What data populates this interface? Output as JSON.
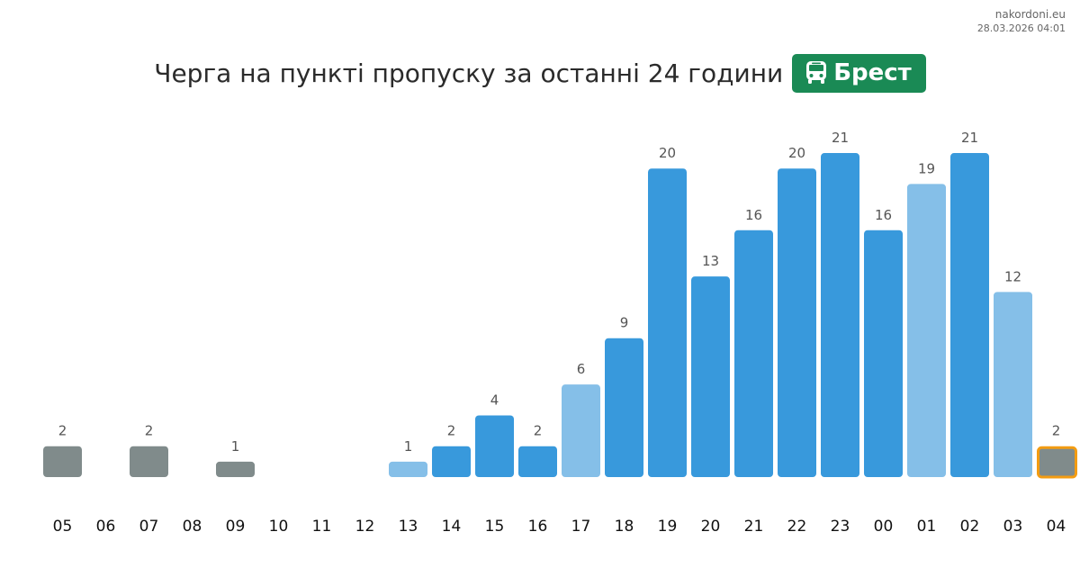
{
  "site": {
    "url": "nakordoni.eu",
    "timestamp": "28.03.2026 04:01"
  },
  "header": {
    "title": "Черга на пункті пропуску за останні 24 години",
    "badge_label": "Брест",
    "badge_icon": "bus-icon",
    "badge_color": "#1a8a55"
  },
  "chart_data": {
    "type": "bar",
    "categories": [
      "05",
      "06",
      "07",
      "08",
      "09",
      "10",
      "11",
      "12",
      "13",
      "14",
      "15",
      "16",
      "17",
      "18",
      "19",
      "20",
      "21",
      "22",
      "23",
      "00",
      "01",
      "02",
      "03",
      "04"
    ],
    "values": [
      2,
      0,
      2,
      0,
      1,
      0,
      0,
      0,
      1,
      2,
      4,
      2,
      6,
      9,
      20,
      13,
      16,
      20,
      21,
      16,
      19,
      21,
      12,
      2
    ],
    "bar_styles": [
      "gray",
      "none",
      "gray",
      "none",
      "gray",
      "none",
      "none",
      "none",
      "light",
      "blue",
      "blue",
      "blue",
      "light",
      "blue",
      "blue",
      "blue",
      "blue",
      "blue",
      "blue",
      "blue",
      "light",
      "blue",
      "light",
      "current"
    ],
    "colors": {
      "blue": "#3899dc",
      "light": "#85bfe8",
      "gray": "#808b8b",
      "current_outline": "#f39c12"
    },
    "title": "Черга на пункті пропуску за останні 24 години",
    "xlabel": "",
    "ylabel": "",
    "grid": false
  }
}
